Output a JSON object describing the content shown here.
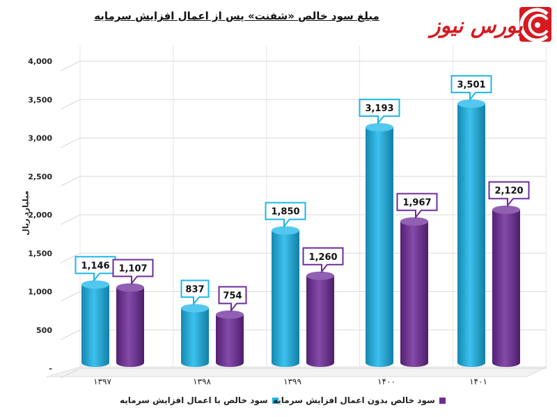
{
  "title": "مبلغ سود خالص «شفنت» پس از اعمال افزایش سرمایه",
  "logo": {
    "text": "بورس نیوز",
    "icon": "bourse-news-logo-icon",
    "color": "#d71920"
  },
  "chart_data": {
    "type": "bar",
    "title": "مبلغ سود خالص «شفنت» پس از اعمال افزایش سرمایه",
    "xlabel": "",
    "ylabel": "میلیارد ریال",
    "categories": [
      "۱۳۹۷",
      "۱۳۹۸",
      "۱۳۹۹",
      "۱۴۰۰",
      "۱۴۰۱"
    ],
    "series": [
      {
        "name": "سود خالص با اعمال افزایش سرمایه",
        "values": [
          1146,
          837,
          1850,
          3193,
          3501
        ],
        "color": "#1ab6ea"
      },
      {
        "name": "سود خالص بدون اعمال افزایش سرمایه",
        "values": [
          1107,
          754,
          1260,
          1967,
          2120
        ],
        "color": "#6e2b9a"
      }
    ],
    "data_labels": [
      [
        "1,146",
        "837",
        "1,850",
        "3,193",
        "3,501"
      ],
      [
        "1,107",
        "754",
        "1,260",
        "1,967",
        "2,120"
      ]
    ],
    "ylim": [
      0,
      4000
    ],
    "yticks": [
      0,
      500,
      1000,
      1500,
      2000,
      2500,
      3000,
      3500,
      4000
    ],
    "ytick_labels": [
      "-",
      "500",
      "1,000",
      "1,500",
      "2,000",
      "2,500",
      "3,000",
      "3,500",
      "4,000"
    ],
    "grid": true,
    "legend_position": "bottom"
  }
}
